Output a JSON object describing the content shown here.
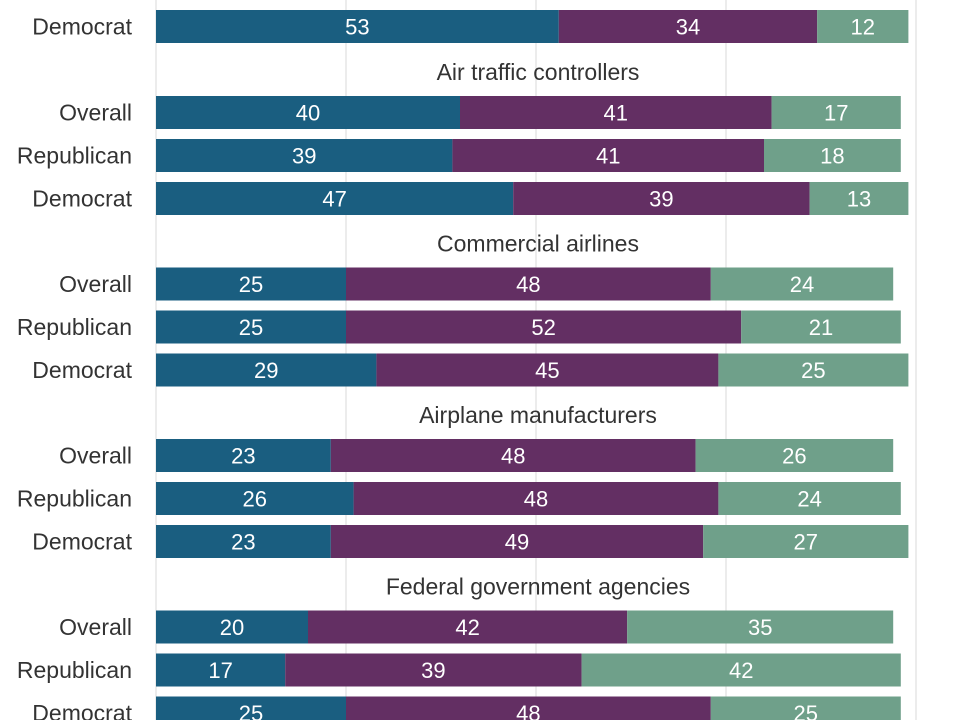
{
  "chart_data": {
    "type": "bar",
    "orientation": "horizontal",
    "stacked": true,
    "xlim": [
      0,
      100
    ],
    "grid": true,
    "colors": [
      "#1a5e80",
      "#632f63",
      "#6fa08a"
    ],
    "groups": [
      {
        "title": "",
        "rows": [
          {
            "label": "Democrat",
            "values": [
              53,
              34,
              12
            ]
          }
        ]
      },
      {
        "title": "Air traffic controllers",
        "rows": [
          {
            "label": "Overall",
            "values": [
              40,
              41,
              17
            ]
          },
          {
            "label": "Republican",
            "values": [
              39,
              41,
              18
            ]
          },
          {
            "label": "Democrat",
            "values": [
              47,
              39,
              13
            ]
          }
        ]
      },
      {
        "title": "Commercial airlines",
        "rows": [
          {
            "label": "Overall",
            "values": [
              25,
              48,
              24
            ]
          },
          {
            "label": "Republican",
            "values": [
              25,
              52,
              21
            ]
          },
          {
            "label": "Democrat",
            "values": [
              29,
              45,
              25
            ]
          }
        ]
      },
      {
        "title": "Airplane manufacturers",
        "rows": [
          {
            "label": "Overall",
            "values": [
              23,
              48,
              26
            ]
          },
          {
            "label": "Republican",
            "values": [
              26,
              48,
              24
            ]
          },
          {
            "label": "Democrat",
            "values": [
              23,
              49,
              27
            ]
          }
        ]
      },
      {
        "title": "Federal government agencies",
        "rows": [
          {
            "label": "Overall",
            "values": [
              20,
              42,
              35
            ]
          },
          {
            "label": "Republican",
            "values": [
              17,
              39,
              42
            ]
          },
          {
            "label": "Democrat",
            "values": [
              25,
              48,
              25
            ]
          }
        ]
      }
    ]
  }
}
